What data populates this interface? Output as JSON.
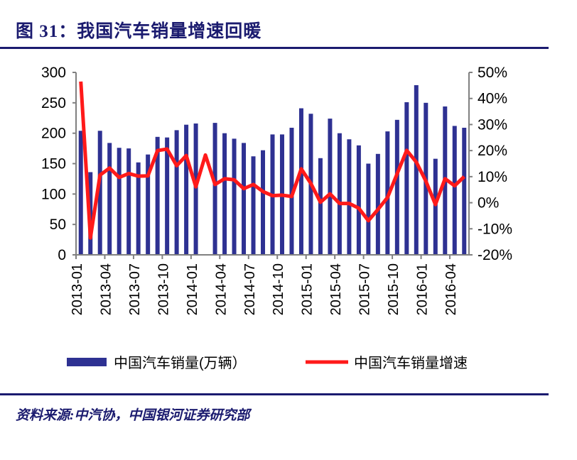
{
  "header": {
    "title": "图 31：我国汽车销量增速回暖"
  },
  "footer": {
    "source": "资料来源:中汽协，中国银河证券研究部"
  },
  "colors": {
    "bar": "#2e3192",
    "line": "#ff1a1a",
    "title": "#1b1b6f",
    "axis": "#808080"
  },
  "chart_data": {
    "type": "bar+line",
    "title": "",
    "categories": [
      "2013-01",
      "2013-02",
      "2013-03",
      "2013-04",
      "2013-05",
      "2013-06",
      "2013-07",
      "2013-08",
      "2013-09",
      "2013-10",
      "2013-11",
      "2013-12",
      "2014-01",
      "2014-02",
      "2014-03",
      "2014-04",
      "2014-05",
      "2014-06",
      "2014-07",
      "2014-08",
      "2014-09",
      "2014-10",
      "2014-11",
      "2014-12",
      "2015-01",
      "2015-02",
      "2015-03",
      "2015-04",
      "2015-05",
      "2015-06",
      "2015-07",
      "2015-08",
      "2015-09",
      "2015-10",
      "2015-11",
      "2015-12",
      "2016-01",
      "2016-02",
      "2016-03",
      "2016-04",
      "2016-05"
    ],
    "x_tick_labels": [
      "2013-01",
      "2013-04",
      "2013-07",
      "2013-10",
      "2014-01",
      "2014-04",
      "2014-07",
      "2014-10",
      "2015-01",
      "2015-04",
      "2015-07",
      "2015-10",
      "2016-01",
      "2016-04"
    ],
    "series": [
      {
        "name": "中国汽车销量(万辆）",
        "type": "bar",
        "axis": "left",
        "values": [
          204,
          136,
          204,
          184,
          176,
          175,
          152,
          165,
          194,
          193,
          205,
          214,
          216,
          null,
          217,
          200,
          191,
          184,
          162,
          172,
          198,
          198,
          209,
          241,
          232,
          159,
          224,
          200,
          190,
          180,
          150,
          166,
          203,
          222,
          251,
          279,
          250,
          158,
          244,
          212,
          209
        ]
      },
      {
        "name": "中国汽车销量增速",
        "type": "line",
        "axis": "right",
        "values": [
          46.5,
          -13.5,
          10.6,
          13.3,
          9.7,
          11.2,
          10.2,
          10.3,
          20.0,
          20.6,
          14.2,
          18.1,
          6.1,
          18.3,
          7.0,
          9.2,
          8.8,
          5.4,
          7.0,
          4.3,
          2.7,
          2.9,
          2.4,
          13.0,
          7.4,
          0.2,
          3.4,
          -0.3,
          -0.3,
          -2.1,
          -6.9,
          -2.6,
          2.0,
          11.1,
          20.1,
          15.6,
          8.3,
          -0.7,
          9.2,
          6.5,
          10.0
        ]
      }
    ],
    "y_left": {
      "lim": [
        0,
        300
      ],
      "ticks": [
        0,
        50,
        100,
        150,
        200,
        250,
        300
      ],
      "tick_labels": [
        "0",
        "50",
        "100",
        "150",
        "200",
        "250",
        "300"
      ]
    },
    "y_right": {
      "lim": [
        -20,
        50
      ],
      "ticks": [
        -20,
        -10,
        0,
        10,
        20,
        30,
        40,
        50
      ],
      "tick_labels": [
        "-20%",
        "-10%",
        "0%",
        "10%",
        "20%",
        "30%",
        "40%",
        "50%"
      ]
    },
    "grid": false,
    "legend_position": "bottom"
  }
}
